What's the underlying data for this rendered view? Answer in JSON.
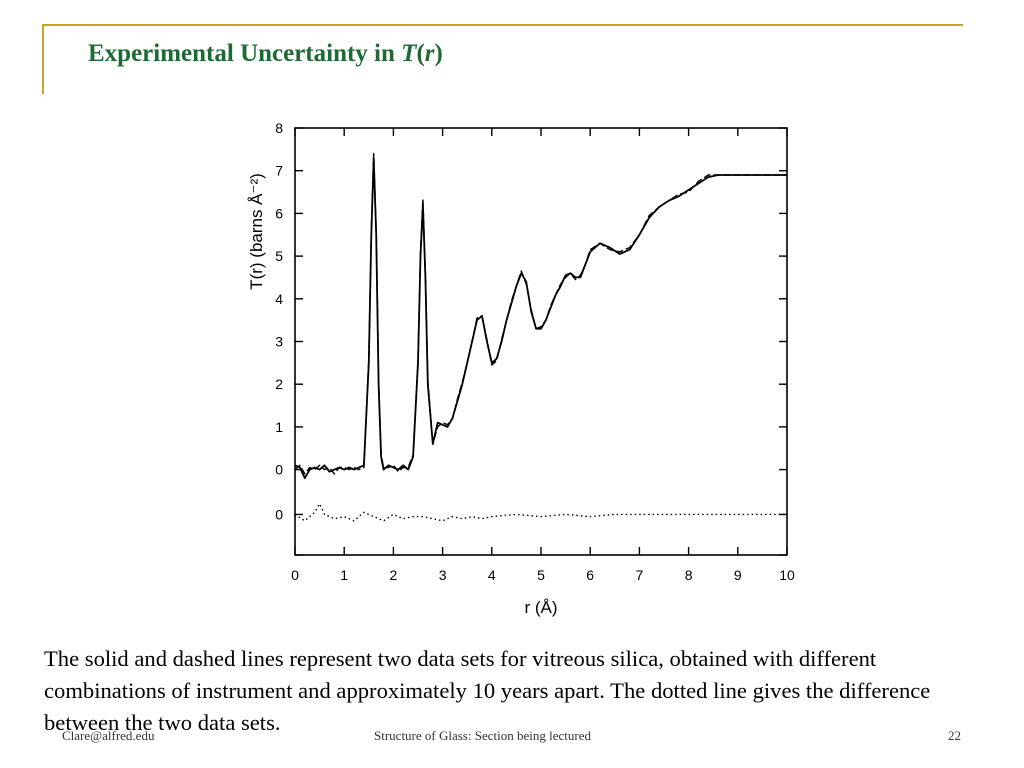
{
  "slide": {
    "title_text": "Experimental Uncertainty in ",
    "title_italic_symbol": "T",
    "title_paren_open": "(",
    "title_italic_var": "r",
    "title_paren_close": ")",
    "caption": "The solid and dashed lines represent two data sets for vitreous silica, obtained with different combinations of instrument and approximately 10 years apart. The dotted line gives the difference between the two data sets.",
    "footer_left": "Clare@alfred.edu",
    "footer_center": "Structure of Glass: Section being lectured",
    "page_number": "22",
    "accent_color": "#c9a227",
    "title_color": "#1e6a34"
  },
  "chart_data": {
    "type": "line",
    "title": "",
    "xlabel": "r  (Å)",
    "ylabel": "T(r)  (barns Å⁻²)",
    "xlim": [
      0,
      10
    ],
    "ylim": [
      -2,
      8
    ],
    "x_ticks": [
      0,
      1,
      2,
      3,
      4,
      5,
      6,
      7,
      8,
      9,
      10
    ],
    "x_tick_labels": [
      "0",
      "1",
      "2",
      "3",
      "4",
      "5",
      "6",
      "7",
      "8",
      "9",
      "10"
    ],
    "y_ticks": [
      8,
      7,
      6,
      5,
      4,
      3,
      2,
      1,
      0
    ],
    "y_tick_labels": [
      "8",
      "7",
      "6",
      "5",
      "4",
      "3",
      "2",
      "1",
      "0"
    ],
    "y_zero_offset_label": "0",
    "y_zero_offset_value": -1.05,
    "grid": false,
    "legend": "none",
    "series": [
      {
        "style": "solid",
        "x": [
          0,
          0.1,
          0.2,
          0.3,
          0.4,
          0.5,
          0.6,
          0.7,
          0.8,
          0.9,
          1.0,
          1.1,
          1.2,
          1.3,
          1.4,
          1.5,
          1.55,
          1.6,
          1.65,
          1.7,
          1.75,
          1.8,
          1.9,
          2.0,
          2.1,
          2.2,
          2.3,
          2.4,
          2.5,
          2.55,
          2.6,
          2.65,
          2.7,
          2.8,
          2.9,
          3.0,
          3.1,
          3.2,
          3.3,
          3.4,
          3.5,
          3.6,
          3.7,
          3.8,
          3.9,
          4.0,
          4.1,
          4.2,
          4.3,
          4.4,
          4.5,
          4.6,
          4.7,
          4.8,
          4.9,
          5.0,
          5.1,
          5.2,
          5.3,
          5.4,
          5.5,
          5.6,
          5.7,
          5.8,
          5.9,
          6.0,
          6.2,
          6.4,
          6.6,
          6.8,
          7.0,
          7.2,
          7.4,
          7.6,
          7.8,
          8.0,
          8.2,
          8.4,
          8.6,
          8.8,
          9.0,
          9.2,
          9.4,
          9.6,
          9.8,
          10.0
        ],
        "y": [
          0.1,
          0.05,
          -0.2,
          0,
          0.05,
          0,
          0.1,
          -0.05,
          0,
          0.05,
          0,
          0.05,
          0,
          0.05,
          0.1,
          2.5,
          5.5,
          7.3,
          5.5,
          2.0,
          0.3,
          0.0,
          0.1,
          0.05,
          0.0,
          0.1,
          0.0,
          0.3,
          2.5,
          5.0,
          6.2,
          4.5,
          2.0,
          0.6,
          1.1,
          1.05,
          1.0,
          1.2,
          1.6,
          2.0,
          2.5,
          3.0,
          3.5,
          3.6,
          3.0,
          2.5,
          2.6,
          3.0,
          3.5,
          3.9,
          4.3,
          4.6,
          4.4,
          3.7,
          3.3,
          3.3,
          3.5,
          3.8,
          4.1,
          4.3,
          4.55,
          4.6,
          4.5,
          4.5,
          4.8,
          5.1,
          5.3,
          5.2,
          5.05,
          5.15,
          5.5,
          5.9,
          6.15,
          6.3,
          6.4,
          6.55,
          6.7,
          6.85,
          6.9,
          6.9,
          6.9,
          6.9,
          6.9,
          6.9,
          6.9,
          6.9
        ]
      },
      {
        "style": "dashed",
        "x": [
          0,
          0.1,
          0.2,
          0.3,
          0.4,
          0.5,
          0.6,
          0.7,
          0.8,
          0.9,
          1.0,
          1.1,
          1.2,
          1.3,
          1.4,
          1.5,
          1.55,
          1.6,
          1.65,
          1.7,
          1.75,
          1.8,
          1.9,
          2.0,
          2.1,
          2.2,
          2.3,
          2.4,
          2.5,
          2.55,
          2.6,
          2.65,
          2.7,
          2.8,
          2.9,
          3.0,
          3.1,
          3.2,
          3.3,
          3.4,
          3.5,
          3.6,
          3.7,
          3.8,
          3.9,
          4.0,
          4.1,
          4.2,
          4.3,
          4.4,
          4.5,
          4.6,
          4.7,
          4.8,
          4.9,
          5.0,
          5.1,
          5.2,
          5.3,
          5.4,
          5.5,
          5.6,
          5.7,
          5.8,
          5.9,
          6.0,
          6.2,
          6.4,
          6.6,
          6.8,
          7.0,
          7.2,
          7.4,
          7.6,
          7.8,
          8.0,
          8.2,
          8.4,
          8.6,
          8.8,
          9.0,
          9.2,
          9.4,
          9.6,
          9.8,
          10.0
        ],
        "y": [
          0.0,
          0.1,
          -0.1,
          0.05,
          0,
          0.1,
          0.0,
          0.05,
          -0.1,
          0.05,
          0.05,
          0,
          0.05,
          0,
          0.05,
          2.6,
          5.6,
          7.4,
          5.6,
          2.1,
          0.35,
          0.05,
          0.05,
          0.1,
          -0.05,
          0.05,
          0.05,
          0.35,
          2.6,
          5.1,
          6.35,
          4.6,
          2.1,
          0.6,
          1.0,
          1.1,
          1.05,
          1.2,
          1.65,
          2.05,
          2.5,
          3.0,
          3.55,
          3.6,
          3.05,
          2.45,
          2.55,
          3.05,
          3.5,
          3.95,
          4.3,
          4.65,
          4.35,
          3.75,
          3.3,
          3.35,
          3.5,
          3.85,
          4.1,
          4.35,
          4.5,
          4.6,
          4.45,
          4.55,
          4.8,
          5.15,
          5.3,
          5.15,
          5.1,
          5.2,
          5.5,
          5.95,
          6.15,
          6.3,
          6.45,
          6.5,
          6.75,
          6.9,
          6.9,
          6.9,
          6.9,
          6.9,
          6.9,
          6.9,
          6.9,
          6.9
        ]
      },
      {
        "style": "dotted",
        "x": [
          0,
          0.2,
          0.4,
          0.5,
          0.6,
          0.8,
          1.0,
          1.2,
          1.4,
          1.6,
          1.8,
          2.0,
          2.2,
          2.4,
          2.6,
          2.8,
          3.0,
          3.2,
          3.4,
          3.6,
          3.8,
          4.0,
          4.5,
          5.0,
          5.5,
          6.0,
          6.5,
          7.0,
          7.5,
          8.0,
          8.5,
          9.0,
          9.5,
          10.0
        ],
        "y": [
          -1.05,
          -1.2,
          -1.0,
          -0.8,
          -1.05,
          -1.15,
          -1.1,
          -1.2,
          -1.0,
          -1.1,
          -1.2,
          -1.05,
          -1.15,
          -1.1,
          -1.1,
          -1.15,
          -1.2,
          -1.1,
          -1.15,
          -1.1,
          -1.15,
          -1.1,
          -1.05,
          -1.1,
          -1.05,
          -1.1,
          -1.05,
          -1.05,
          -1.05,
          -1.05,
          -1.05,
          -1.05,
          -1.05,
          -1.05
        ]
      }
    ]
  }
}
